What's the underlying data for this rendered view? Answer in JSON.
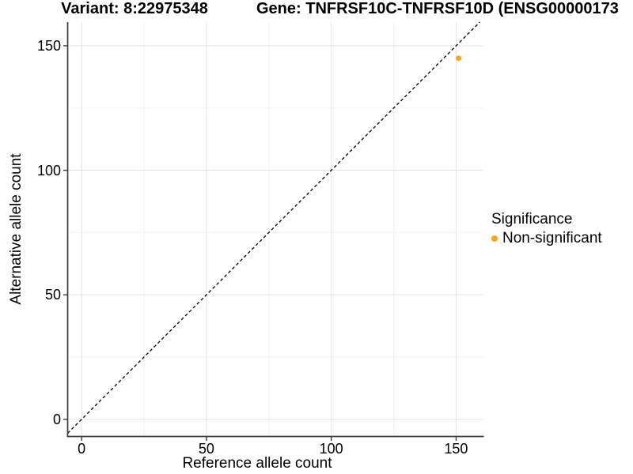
{
  "figure": {
    "background": "#FFFFFF"
  },
  "chart_data": {
    "type": "scatter",
    "titles": {
      "left": "Variant: 8:22975348",
      "right": "Gene: TNFRSF10C-TNFRSF10D (ENSG00000173"
    },
    "xlabel": "Reference allele count",
    "ylabel": "Alternative allele count",
    "x_ticks": [
      0,
      50,
      100,
      150
    ],
    "y_ticks": [
      0,
      50,
      100,
      150
    ],
    "x_minor_ticks": [
      25,
      75,
      125
    ],
    "y_minor_ticks": [
      25,
      75,
      125
    ],
    "xlim": [
      -5.6,
      160.8
    ],
    "ylim": [
      -6.9,
      159.5
    ],
    "grid": "major and minor gridlines, light gray on white",
    "reference_line": {
      "type": "identity",
      "equation": "y = x",
      "style": "dashed",
      "color": "#000000"
    },
    "points": [
      {
        "x": 151,
        "y": 145,
        "series": "Non-significant"
      }
    ],
    "legend": {
      "title": "Significance",
      "position": "right",
      "items": [
        {
          "label": "Non-significant",
          "color": "#FAA51B"
        }
      ]
    },
    "colors": {
      "point": "#FAA51B",
      "axis_line": "#3C3C3C",
      "grid_major": "#E3E3E3",
      "grid_minor": "#F2F2F2",
      "text": "#000000",
      "background": "#FFFFFF"
    }
  }
}
